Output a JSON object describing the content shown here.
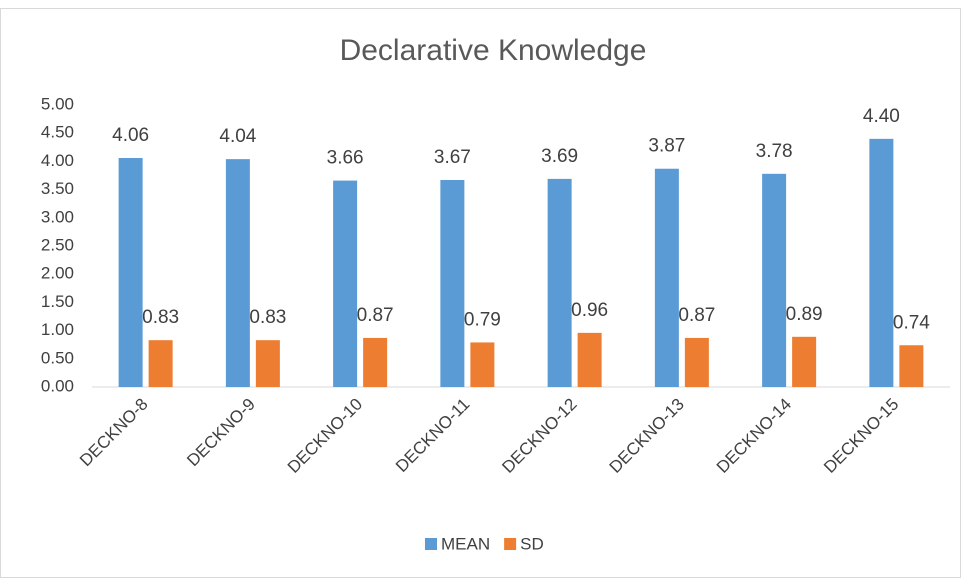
{
  "chart_data": {
    "type": "bar",
    "title": "Declarative Knowledge",
    "categories": [
      "DECKNO-8",
      "DECKNO-9",
      "DECKNO-10",
      "DECKNO-11",
      "DECKNO-12",
      "DECKNO-13",
      "DECKNO-14",
      "DECKNO-15"
    ],
    "series": [
      {
        "name": "MEAN",
        "color": "#5b9bd5",
        "values": [
          4.06,
          4.04,
          3.66,
          3.67,
          3.69,
          3.87,
          3.78,
          4.4
        ],
        "value_labels": [
          "4.06",
          "4.04",
          "3.66",
          "3.67",
          "3.69",
          "3.87",
          "3.78",
          "4.40"
        ]
      },
      {
        "name": "SD",
        "color": "#ed7d31",
        "values": [
          0.83,
          0.83,
          0.87,
          0.79,
          0.96,
          0.87,
          0.89,
          0.74
        ],
        "value_labels": [
          "0.83",
          "0.83",
          "0.87",
          "0.79",
          "0.96",
          "0.87",
          "0.89",
          "0.74"
        ]
      }
    ],
    "ylim": [
      0,
      5
    ],
    "yticks": [
      {
        "value": 0,
        "label": "0.00"
      },
      {
        "value": 0.5,
        "label": "0.50"
      },
      {
        "value": 1,
        "label": "1.00"
      },
      {
        "value": 1.5,
        "label": "1.50"
      },
      {
        "value": 2,
        "label": "2.00"
      },
      {
        "value": 2.5,
        "label": "2.50"
      },
      {
        "value": 3,
        "label": "3.00"
      },
      {
        "value": 3.5,
        "label": "3.50"
      },
      {
        "value": 4,
        "label": "4.00"
      },
      {
        "value": 4.5,
        "label": "4.50"
      },
      {
        "value": 5,
        "label": "5.00"
      }
    ],
    "grid": false,
    "legend": "bottom"
  }
}
